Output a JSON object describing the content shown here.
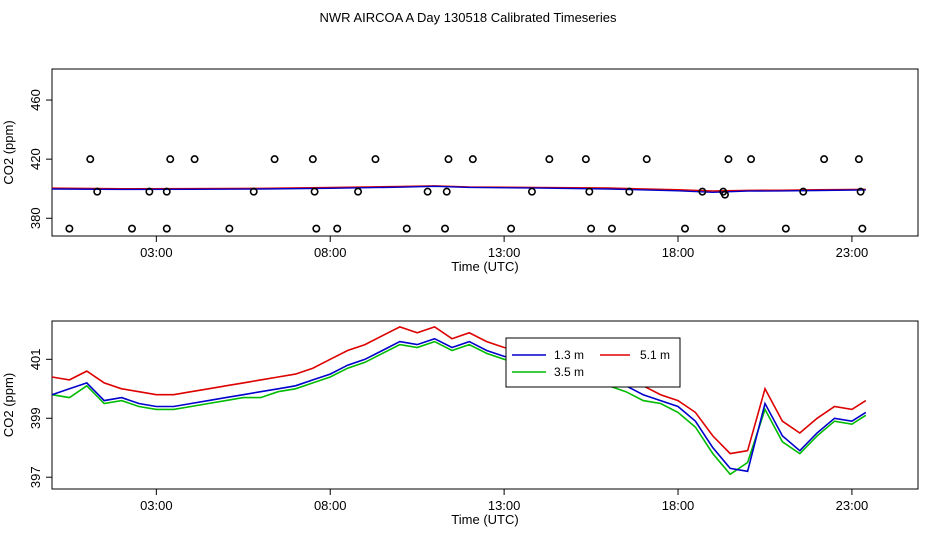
{
  "figure": {
    "title": "NWR AIRCOA A  Day 130518  Calibrated Timeseries"
  },
  "chart_data": [
    {
      "type": "scatter",
      "xlabel": "Time (UTC)",
      "ylabel": "CO2 (ppm)",
      "xlim": [
        0,
        24.9
      ],
      "ylim": [
        368,
        481
      ],
      "xticks": [
        3,
        8,
        13,
        18,
        23
      ],
      "xtick_labels": [
        "03:00",
        "08:00",
        "13:00",
        "18:00",
        "23:00"
      ],
      "yticks": [
        380,
        420,
        460
      ],
      "ytick_labels": [
        "380",
        "420",
        "460"
      ],
      "points": [
        {
          "x": 0.5,
          "y": 373
        },
        {
          "x": 1.1,
          "y": 420
        },
        {
          "x": 1.3,
          "y": 398
        },
        {
          "x": 2.3,
          "y": 373
        },
        {
          "x": 2.8,
          "y": 398
        },
        {
          "x": 3.3,
          "y": 373
        },
        {
          "x": 3.3,
          "y": 398
        },
        {
          "x": 3.4,
          "y": 420
        },
        {
          "x": 4.1,
          "y": 420
        },
        {
          "x": 5.1,
          "y": 373
        },
        {
          "x": 5.8,
          "y": 398
        },
        {
          "x": 6.4,
          "y": 420
        },
        {
          "x": 7.5,
          "y": 420
        },
        {
          "x": 7.55,
          "y": 398
        },
        {
          "x": 7.6,
          "y": 373
        },
        {
          "x": 8.2,
          "y": 373
        },
        {
          "x": 8.8,
          "y": 398
        },
        {
          "x": 9.3,
          "y": 420
        },
        {
          "x": 10.2,
          "y": 373
        },
        {
          "x": 10.8,
          "y": 398
        },
        {
          "x": 11.3,
          "y": 373
        },
        {
          "x": 11.35,
          "y": 398
        },
        {
          "x": 11.4,
          "y": 420
        },
        {
          "x": 12.1,
          "y": 420
        },
        {
          "x": 13.2,
          "y": 373
        },
        {
          "x": 13.8,
          "y": 398
        },
        {
          "x": 14.3,
          "y": 420
        },
        {
          "x": 15.35,
          "y": 420
        },
        {
          "x": 15.45,
          "y": 398
        },
        {
          "x": 15.5,
          "y": 373
        },
        {
          "x": 16.1,
          "y": 373
        },
        {
          "x": 16.6,
          "y": 398
        },
        {
          "x": 17.1,
          "y": 420
        },
        {
          "x": 18.2,
          "y": 373
        },
        {
          "x": 18.7,
          "y": 398
        },
        {
          "x": 19.25,
          "y": 373
        },
        {
          "x": 19.3,
          "y": 398
        },
        {
          "x": 19.35,
          "y": 396
        },
        {
          "x": 19.45,
          "y": 420
        },
        {
          "x": 20.1,
          "y": 420
        },
        {
          "x": 21.1,
          "y": 373
        },
        {
          "x": 21.6,
          "y": 398
        },
        {
          "x": 22.2,
          "y": 420
        },
        {
          "x": 23.2,
          "y": 420
        },
        {
          "x": 23.25,
          "y": 398
        },
        {
          "x": 23.3,
          "y": 373
        }
      ],
      "lines": [
        {
          "color": "#dd0000",
          "x": [
            0,
            2,
            4,
            6,
            8,
            10,
            11,
            12,
            14,
            16,
            18,
            19,
            20,
            21,
            22,
            23.4
          ],
          "values": [
            400.4,
            400.0,
            400.1,
            400.3,
            400.9,
            401.5,
            402.0,
            401.2,
            400.8,
            400.5,
            399.3,
            398.5,
            398.9,
            399.0,
            399.3,
            399.6
          ]
        },
        {
          "color": "#0000cc",
          "x": [
            0,
            2,
            4,
            6,
            8,
            10,
            11,
            12,
            14,
            16,
            18,
            19,
            20,
            21,
            22,
            23.4
          ],
          "values": [
            399.8,
            399.5,
            399.6,
            399.8,
            400.3,
            401.0,
            401.6,
            400.9,
            400.4,
            399.8,
            398.6,
            397.6,
            398.4,
            398.5,
            398.8,
            399.2
          ]
        }
      ]
    },
    {
      "type": "line",
      "xlabel": "Time (UTC)",
      "ylabel": "CO2 (ppm)",
      "xlim": [
        0,
        24.9
      ],
      "ylim": [
        396.6,
        402.3
      ],
      "xticks": [
        3,
        8,
        13,
        18,
        23
      ],
      "xtick_labels": [
        "03:00",
        "08:00",
        "13:00",
        "18:00",
        "23:00"
      ],
      "yticks": [
        397,
        399,
        401
      ],
      "ytick_labels": [
        "397",
        "399",
        "401"
      ],
      "legend": {
        "position": "center-right",
        "entries": [
          "1.3 m",
          "3.5 m",
          "5.1 m"
        ]
      },
      "x": [
        0,
        0.5,
        1,
        1.5,
        2,
        2.5,
        3,
        3.5,
        4,
        4.5,
        5,
        5.5,
        6,
        6.5,
        7,
        7.5,
        8,
        8.5,
        9,
        9.5,
        10,
        10.5,
        11,
        11.5,
        12,
        12.5,
        13,
        13.5,
        14,
        14.5,
        15,
        15.5,
        16,
        16.5,
        17,
        17.5,
        18,
        18.5,
        19,
        19.5,
        20,
        20.5,
        21,
        21.5,
        22,
        22.5,
        23,
        23.4
      ],
      "series": [
        {
          "name": "1.3 m",
          "color": "#0000cc",
          "values": [
            399.8,
            400.0,
            400.2,
            399.6,
            399.7,
            399.5,
            399.4,
            399.4,
            399.5,
            399.6,
            399.7,
            399.8,
            399.9,
            400.0,
            400.1,
            400.3,
            400.5,
            400.8,
            401.0,
            401.3,
            401.6,
            401.5,
            401.7,
            401.4,
            401.6,
            401.3,
            401.1,
            401.0,
            401.1,
            400.9,
            400.8,
            400.5,
            400.3,
            400.1,
            399.8,
            399.6,
            399.4,
            398.9,
            398.0,
            397.3,
            397.2,
            399.5,
            398.4,
            397.9,
            398.5,
            399.0,
            398.9,
            399.2
          ]
        },
        {
          "name": "3.5 m",
          "color": "#00bb00",
          "values": [
            399.8,
            399.7,
            400.1,
            399.5,
            399.6,
            399.4,
            399.3,
            399.3,
            399.4,
            399.5,
            399.6,
            399.7,
            399.7,
            399.9,
            400.0,
            400.2,
            400.4,
            400.7,
            400.9,
            401.2,
            401.5,
            401.4,
            401.6,
            401.3,
            401.5,
            401.2,
            401.0,
            400.9,
            401.0,
            400.8,
            400.7,
            400.4,
            400.1,
            399.9,
            399.6,
            399.5,
            399.2,
            398.7,
            397.8,
            397.1,
            397.5,
            399.3,
            398.2,
            397.8,
            398.4,
            398.9,
            398.8,
            399.1
          ]
        },
        {
          "name": "5.1 m",
          "color": "#dd0000",
          "values": [
            400.4,
            400.3,
            400.6,
            400.2,
            400.0,
            399.9,
            399.8,
            399.8,
            399.9,
            400.0,
            400.1,
            400.2,
            400.3,
            400.4,
            400.5,
            400.7,
            401.0,
            401.3,
            401.5,
            401.8,
            402.1,
            401.9,
            402.1,
            401.7,
            401.9,
            401.6,
            401.4,
            401.3,
            401.4,
            401.2,
            401.1,
            400.9,
            400.7,
            400.4,
            400.1,
            399.8,
            399.6,
            399.2,
            398.4,
            397.8,
            397.9,
            400.0,
            398.9,
            398.5,
            399.0,
            399.4,
            399.3,
            399.6
          ]
        }
      ]
    }
  ]
}
